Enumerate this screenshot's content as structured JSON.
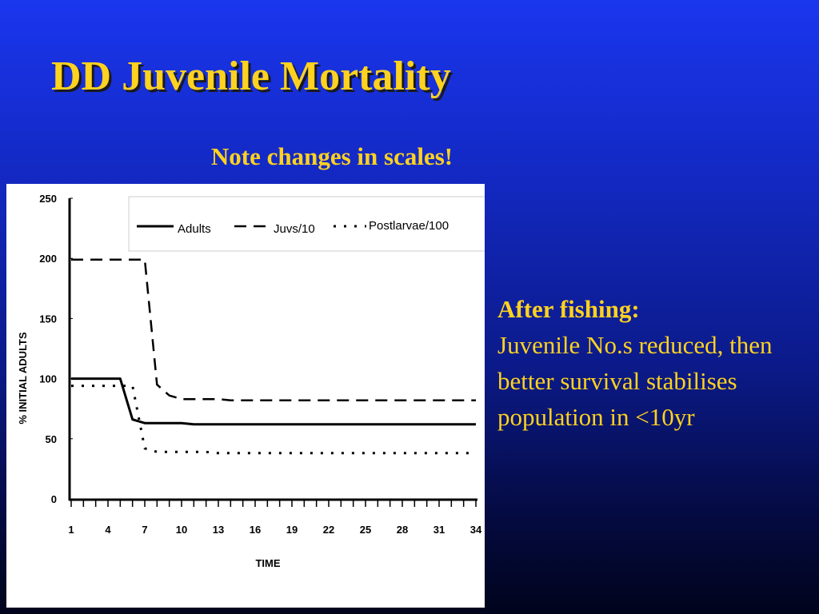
{
  "slide": {
    "title": "DD Juvenile Mortality",
    "note": "Note changes in scales!",
    "side_heading": "After fishing:",
    "side_body": "Juvenile No.s reduced, then better survival stabilises population in <10yr"
  },
  "colors": {
    "title": "#ffd21f",
    "text": "#ffd21f",
    "chart_bg": "#ffffff",
    "series": "#000000"
  },
  "chart_data": {
    "type": "line",
    "title": "",
    "xlabel": "TIME",
    "ylabel": "% INITIAL ADULTS",
    "ylim": [
      0,
      250
    ],
    "xlim": [
      1,
      34
    ],
    "y_ticks": [
      0,
      50,
      100,
      150,
      200,
      250
    ],
    "x_tick_labels": [
      1,
      4,
      7,
      10,
      13,
      16,
      19,
      22,
      25,
      28,
      31,
      34
    ],
    "grid": false,
    "legend_position": "top",
    "x": [
      1,
      2,
      3,
      4,
      5,
      6,
      7,
      8,
      9,
      10,
      11,
      12,
      13,
      14,
      15,
      16,
      17,
      18,
      19,
      20,
      21,
      22,
      23,
      24,
      25,
      26,
      27,
      28,
      29,
      30,
      31,
      32,
      33,
      34
    ],
    "series": [
      {
        "name": "Adults",
        "style": "solid",
        "values": [
          100,
          100,
          100,
          100,
          100,
          66,
          63,
          63,
          63,
          63,
          62,
          62,
          62,
          62,
          62,
          62,
          62,
          62,
          62,
          62,
          62,
          62,
          62,
          62,
          62,
          62,
          62,
          62,
          62,
          62,
          62,
          62,
          62,
          62
        ]
      },
      {
        "name": "Juvs/10",
        "style": "dashed",
        "values": [
          199,
          199,
          199,
          199,
          199,
          199,
          199,
          95,
          86,
          83,
          83,
          83,
          83,
          82,
          82,
          82,
          82,
          82,
          82,
          82,
          82,
          82,
          82,
          82,
          82,
          82,
          82,
          82,
          82,
          82,
          82,
          82,
          82,
          82
        ]
      },
      {
        "name": "Postlarvae/100",
        "style": "dotted",
        "values": [
          94,
          94,
          94,
          94,
          94,
          94,
          42,
          39,
          39,
          39,
          39,
          39,
          38,
          38,
          38,
          38,
          38,
          38,
          38,
          38,
          38,
          38,
          38,
          38,
          38,
          38,
          38,
          38,
          38,
          38,
          38,
          38,
          38,
          38
        ]
      }
    ]
  }
}
